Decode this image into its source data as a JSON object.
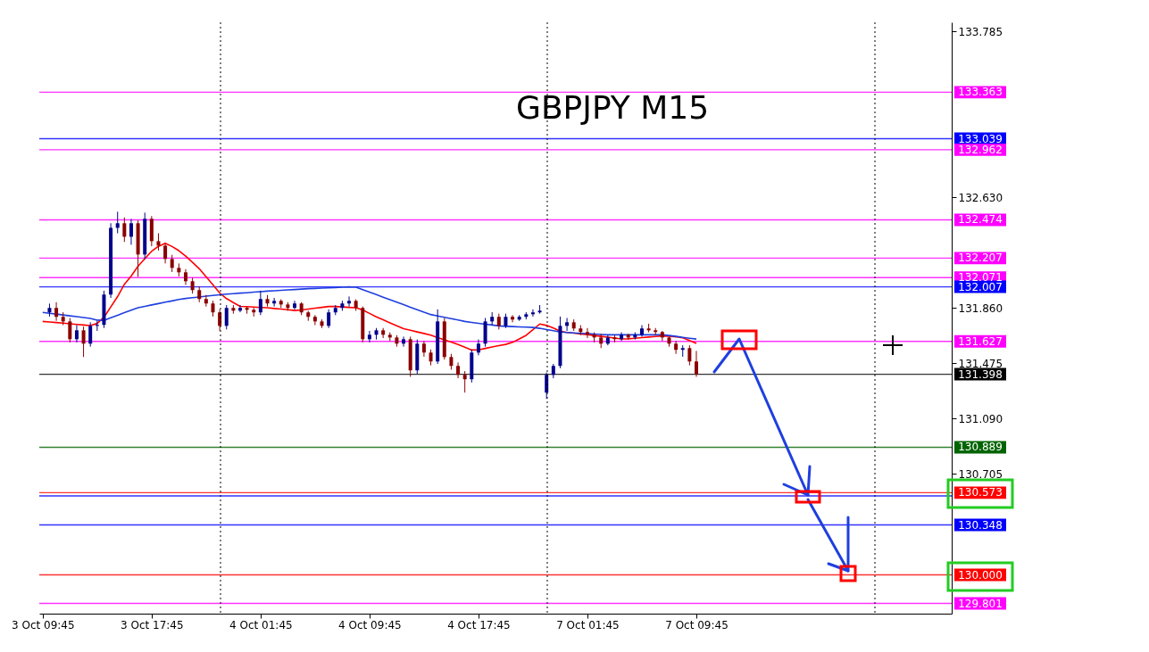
{
  "chart_data": {
    "type": "candlestick",
    "title": "GBPJPY M15",
    "categories": [
      "3 Oct 09:45",
      null,
      null,
      null,
      null,
      null,
      null,
      null,
      null,
      null,
      null,
      null,
      null,
      null,
      null,
      null,
      "3 Oct 17:45",
      null,
      null,
      null,
      null,
      null,
      null,
      null,
      null,
      null,
      null,
      null,
      null,
      null,
      null,
      null,
      "4 Oct 01:45",
      null,
      null,
      null,
      null,
      null,
      null,
      null,
      null,
      null,
      null,
      null,
      null,
      null,
      null,
      null,
      "4 Oct 09:45",
      null,
      null,
      null,
      null,
      null,
      null,
      null,
      null,
      null,
      null,
      null,
      null,
      null,
      null,
      null,
      "4 Oct 17:45",
      null,
      null,
      null,
      null,
      null,
      null,
      null,
      null,
      null,
      null,
      null,
      null,
      null,
      null,
      null,
      "7 Oct 01:45",
      null,
      null,
      null,
      null,
      null,
      null,
      null,
      null,
      null,
      null,
      null,
      null,
      null,
      null,
      null,
      "7 Oct 09:45",
      null,
      null,
      null,
      null,
      null,
      null,
      null,
      null,
      null,
      null,
      null,
      null,
      null,
      null,
      null,
      null,
      null,
      null,
      null,
      null,
      null,
      null,
      null,
      null,
      null,
      null,
      null,
      null,
      null,
      null,
      null,
      null,
      null,
      null,
      null,
      null,
      null
    ],
    "ohlc": [
      null,
      [
        131.829,
        131.89,
        131.8,
        131.86
      ],
      [
        131.86,
        131.9,
        131.77,
        131.798
      ],
      [
        131.798,
        131.83,
        131.74,
        131.766
      ],
      [
        131.766,
        131.79,
        131.62,
        131.642
      ],
      [
        131.642,
        131.74,
        131.62,
        131.704
      ],
      [
        131.704,
        131.73,
        131.518,
        131.611
      ],
      [
        131.611,
        131.76,
        131.59,
        131.735
      ],
      [
        131.735,
        131.77,
        131.7,
        131.742
      ],
      [
        131.742,
        131.98,
        131.72,
        131.953
      ],
      [
        131.953,
        132.45,
        131.93,
        132.418
      ],
      [
        132.418,
        132.53,
        132.38,
        132.45
      ],
      [
        132.45,
        132.49,
        132.32,
        132.356
      ],
      [
        132.356,
        132.48,
        132.3,
        132.45
      ],
      [
        132.45,
        132.47,
        132.077,
        132.232
      ],
      [
        132.232,
        132.524,
        132.2,
        132.481
      ],
      [
        132.481,
        132.5,
        132.29,
        132.325
      ],
      [
        132.325,
        132.38,
        132.26,
        132.294
      ],
      [
        132.294,
        132.31,
        132.17,
        132.201
      ],
      [
        132.201,
        132.23,
        132.11,
        132.139
      ],
      [
        132.139,
        132.17,
        132.08,
        132.108
      ],
      [
        132.108,
        132.13,
        132.02,
        132.046
      ],
      [
        132.046,
        132.07,
        131.96,
        131.984
      ],
      [
        131.984,
        132.01,
        131.9,
        131.922
      ],
      [
        131.922,
        131.95,
        131.87,
        131.891
      ],
      [
        131.891,
        131.91,
        131.8,
        131.829
      ],
      [
        131.829,
        131.85,
        131.7,
        131.735
      ],
      [
        131.735,
        131.88,
        131.71,
        131.86
      ],
      [
        131.86,
        131.88,
        131.82,
        131.841
      ],
      [
        131.841,
        131.88,
        131.83,
        131.86
      ],
      [
        131.86,
        131.87,
        131.82,
        131.847
      ],
      [
        131.847,
        131.86,
        131.8,
        131.829
      ],
      [
        131.829,
        131.98,
        131.81,
        131.922
      ],
      [
        131.922,
        131.95,
        131.87,
        131.891
      ],
      [
        131.891,
        131.93,
        131.87,
        131.909
      ],
      [
        131.909,
        131.92,
        131.86,
        131.884
      ],
      [
        131.884,
        131.9,
        131.84,
        131.86
      ],
      [
        131.86,
        131.91,
        131.85,
        131.891
      ],
      [
        131.891,
        131.9,
        131.81,
        131.829
      ],
      [
        131.829,
        131.84,
        131.77,
        131.798
      ],
      [
        131.798,
        131.81,
        131.74,
        131.766
      ],
      [
        131.766,
        131.78,
        131.72,
        131.735
      ],
      [
        131.735,
        131.85,
        131.72,
        131.829
      ],
      [
        131.829,
        131.88,
        131.81,
        131.86
      ],
      [
        131.86,
        131.91,
        131.84,
        131.891
      ],
      [
        131.891,
        131.94,
        131.87,
        131.909
      ],
      [
        131.909,
        131.92,
        131.84,
        131.86
      ],
      [
        131.86,
        131.87,
        131.62,
        131.642
      ],
      [
        131.642,
        131.7,
        131.62,
        131.673
      ],
      [
        131.673,
        131.72,
        131.64,
        131.704
      ],
      [
        131.704,
        131.72,
        131.65,
        131.673
      ],
      [
        131.673,
        131.69,
        131.63,
        131.654
      ],
      [
        131.654,
        131.67,
        131.59,
        131.611
      ],
      [
        131.611,
        131.66,
        131.59,
        131.642
      ],
      [
        131.642,
        131.66,
        131.38,
        131.425
      ],
      [
        131.425,
        131.64,
        131.4,
        131.611
      ],
      [
        131.611,
        131.63,
        131.52,
        131.549
      ],
      [
        131.549,
        131.57,
        131.46,
        131.487
      ],
      [
        131.487,
        131.85,
        131.47,
        131.766
      ],
      [
        131.766,
        131.79,
        131.5,
        131.518
      ],
      [
        131.518,
        131.54,
        131.43,
        131.456
      ],
      [
        131.456,
        131.48,
        131.37,
        131.394
      ],
      [
        131.394,
        131.42,
        131.27,
        131.363
      ],
      [
        131.363,
        131.57,
        131.34,
        131.549
      ],
      [
        131.549,
        131.64,
        131.53,
        131.611
      ],
      [
        131.611,
        131.79,
        131.59,
        131.766
      ],
      [
        131.766,
        131.83,
        131.74,
        131.798
      ],
      [
        131.798,
        131.82,
        131.71,
        131.735
      ],
      [
        131.735,
        131.82,
        131.72,
        131.798
      ],
      [
        131.798,
        131.81,
        131.76,
        131.779
      ],
      [
        131.779,
        131.81,
        131.77,
        131.798
      ],
      [
        131.798,
        131.83,
        131.78,
        131.816
      ],
      [
        131.816,
        131.85,
        131.8,
        131.829
      ],
      [
        131.829,
        131.88,
        131.82,
        131.841
      ],
      [
        131.27,
        131.41,
        131.226,
        131.394
      ],
      [
        131.394,
        131.47,
        131.37,
        131.456
      ],
      [
        131.456,
        131.8,
        131.44,
        131.735
      ],
      [
        131.735,
        131.79,
        131.7,
        131.76
      ],
      [
        131.76,
        131.78,
        131.7,
        131.717
      ],
      [
        131.717,
        131.74,
        131.67,
        131.692
      ],
      [
        131.692,
        131.72,
        131.65,
        131.673
      ],
      [
        131.673,
        131.69,
        131.62,
        131.654
      ],
      [
        131.654,
        131.68,
        131.58,
        131.611
      ],
      [
        131.611,
        131.67,
        131.6,
        131.654
      ],
      [
        131.654,
        131.67,
        131.62,
        131.642
      ],
      [
        131.642,
        131.69,
        131.63,
        131.673
      ],
      [
        131.673,
        131.68,
        131.64,
        131.654
      ],
      [
        131.654,
        131.69,
        131.64,
        131.673
      ],
      [
        131.673,
        131.74,
        131.66,
        131.717
      ],
      [
        131.717,
        131.75,
        131.69,
        131.704
      ],
      [
        131.704,
        131.72,
        131.67,
        131.692
      ],
      [
        131.692,
        131.7,
        131.63,
        131.654
      ],
      [
        131.654,
        131.66,
        131.59,
        131.611
      ],
      [
        131.611,
        131.63,
        131.54,
        131.568
      ],
      [
        131.568,
        131.6,
        131.52,
        131.58
      ],
      [
        131.58,
        131.6,
        131.46,
        131.487
      ],
      [
        131.487,
        131.56,
        131.38,
        131.398
      ],
      null,
      null,
      null,
      null,
      null,
      null,
      null,
      null,
      null,
      null,
      null,
      null,
      null,
      null,
      null,
      null,
      null,
      null,
      null,
      null,
      null,
      null,
      null,
      null,
      null,
      null,
      null,
      null,
      null,
      null,
      null,
      null,
      null,
      null,
      null,
      null,
      null
    ],
    "colors": [
      null,
      "#00008b",
      "#8b0000",
      "#8b0000",
      "#8b0000",
      "#00008b",
      "#8b0000",
      "#00008b",
      "#00008b",
      "#00008b",
      "#00008b",
      "#00008b",
      "#8b0000",
      "#00008b",
      "#8b0000",
      "#00008b",
      "#8b0000",
      "#8b0000",
      "#8b0000",
      "#8b0000",
      "#8b0000",
      "#8b0000",
      "#8b0000",
      "#8b0000",
      "#8b0000",
      "#8b0000",
      "#8b0000",
      "#00008b",
      "#8b0000",
      "#00008b",
      "#8b0000",
      "#8b0000",
      "#00008b",
      "#8b0000",
      "#00008b",
      "#8b0000",
      "#8b0000",
      "#00008b",
      "#8b0000",
      "#8b0000",
      "#8b0000",
      "#8b0000",
      "#00008b",
      "#00008b",
      "#00008b",
      "#00008b",
      "#8b0000",
      "#8b0000",
      "#00008b",
      "#00008b",
      "#8b0000",
      "#8b0000",
      "#8b0000",
      "#00008b",
      "#8b0000",
      "#00008b",
      "#8b0000",
      "#8b0000",
      "#00008b",
      "#8b0000",
      "#8b0000",
      "#8b0000",
      "#8b0000",
      "#00008b",
      "#00008b",
      "#00008b",
      "#00008b",
      "#8b0000",
      "#00008b",
      "#8b0000",
      "#00008b",
      "#00008b",
      "#00008b",
      "#00008b",
      "#00008b",
      "#00008b",
      "#00008b",
      "#00008b",
      "#8b0000",
      "#8b0000",
      "#8b0000",
      "#8b0000",
      "#8b0000",
      "#00008b",
      "#8b0000",
      "#00008b",
      "#8b0000",
      "#00008b",
      "#00008b",
      "#8b0000",
      "#8b0000",
      "#8b0000",
      "#8b0000",
      "#8b0000",
      "#00008b",
      "#8b0000",
      "#8b0000",
      null,
      null,
      null,
      null,
      null,
      null,
      null,
      null,
      null,
      null,
      null,
      null,
      null,
      null,
      null,
      null,
      null,
      null,
      null,
      null,
      null,
      null,
      null,
      null,
      null,
      null,
      null,
      null,
      null,
      null,
      null,
      null,
      null,
      null,
      null,
      null,
      null
    ],
    "series": [
      {
        "type": "line",
        "color": "#ff0000",
        "values": [
          131.766,
          131.762,
          131.758,
          131.754,
          131.75,
          131.745,
          131.741,
          131.737,
          131.752,
          131.795,
          131.867,
          131.939,
          132.025,
          132.082,
          132.15,
          132.203,
          132.255,
          132.289,
          132.311,
          132.288,
          132.259,
          132.221,
          132.178,
          132.133,
          132.077,
          132.021,
          131.964,
          131.925,
          131.897,
          131.871,
          131.869,
          131.866,
          131.863,
          131.861,
          131.856,
          131.852,
          131.847,
          131.842,
          131.846,
          131.852,
          131.858,
          131.864,
          131.87,
          131.87,
          131.867,
          131.864,
          131.861,
          131.846,
          131.822,
          131.798,
          131.777,
          131.756,
          131.736,
          131.716,
          131.705,
          131.693,
          131.682,
          131.67,
          131.654,
          131.638,
          131.622,
          131.605,
          131.586,
          131.567,
          131.568,
          131.578,
          131.588,
          131.597,
          131.606,
          131.62,
          131.644,
          131.669,
          131.708,
          131.748,
          131.738,
          131.72,
          131.698,
          131.689,
          131.684,
          131.679,
          131.674,
          131.668,
          131.662,
          131.656,
          131.65,
          131.644,
          131.645,
          131.649,
          131.653,
          131.657,
          131.661,
          131.665,
          131.663,
          131.659,
          131.652,
          131.633,
          131.613,
          null,
          null,
          null,
          null,
          null,
          null,
          null,
          null,
          null,
          null,
          null,
          null,
          null,
          null,
          null,
          null,
          null,
          null,
          null,
          null,
          null,
          null,
          null,
          null,
          null,
          null,
          null,
          null,
          null,
          null,
          null,
          null,
          null,
          null,
          null,
          null,
          null
        ]
      },
      {
        "type": "line",
        "color": "#1f3fdf",
        "values": [
          131.829,
          131.823,
          131.817,
          131.811,
          131.805,
          131.799,
          131.793,
          131.787,
          131.775,
          131.773,
          131.791,
          131.809,
          131.827,
          131.845,
          131.862,
          131.871,
          131.881,
          131.89,
          131.9,
          131.909,
          131.919,
          131.926,
          131.931,
          131.936,
          131.942,
          131.947,
          131.952,
          131.956,
          131.959,
          131.963,
          131.966,
          131.97,
          131.973,
          131.977,
          131.98,
          131.983,
          131.986,
          131.988,
          131.991,
          131.994,
          131.996,
          131.998,
          132.0,
          132.002,
          132.004,
          132.007,
          132.004,
          131.987,
          131.97,
          131.953,
          131.935,
          131.918,
          131.9,
          131.883,
          131.865,
          131.848,
          131.83,
          131.814,
          131.804,
          131.795,
          131.785,
          131.776,
          131.766,
          131.759,
          131.753,
          131.747,
          131.741,
          131.735,
          131.732,
          131.73,
          131.728,
          131.726,
          131.724,
          131.718,
          131.709,
          131.701,
          131.692,
          131.689,
          131.686,
          131.683,
          131.681,
          131.678,
          131.675,
          131.673,
          131.673,
          131.673,
          131.673,
          131.673,
          131.673,
          131.673,
          131.673,
          131.673,
          131.668,
          131.662,
          131.655,
          131.649,
          131.643,
          null,
          null,
          null,
          null,
          null,
          null,
          null,
          null,
          null,
          null,
          null,
          null,
          null,
          null,
          null,
          null,
          null,
          null,
          null,
          null,
          null,
          null,
          null,
          null,
          null,
          null,
          null,
          null,
          null,
          null,
          null,
          null,
          null,
          null,
          null,
          null,
          null
        ]
      }
    ],
    "ylim": [
      129.73,
      133.85
    ],
    "yticks": [
      133.785,
      {
        "value": 132.63,
        "label": "132.630"
      },
      {
        "value": 131.86,
        "label": "131.860"
      },
      131.475,
      {
        "value": 131.09,
        "label": "131.090"
      },
      130.705
    ],
    "ref_lines": [
      {
        "axis": "y",
        "value": 133.363,
        "label": "133.363",
        "color": "#ff00ff"
      },
      {
        "axis": "y",
        "value": 133.039,
        "label": "133.039",
        "color": "#0000ff"
      },
      {
        "axis": "y",
        "value": 132.962,
        "label": "132.962",
        "color": "#ff00ff"
      },
      {
        "axis": "y",
        "value": 132.474,
        "label": "132.474",
        "color": "#ff00ff"
      },
      {
        "axis": "y",
        "value": 132.207,
        "label": "132.207",
        "color": "#ff00ff"
      },
      {
        "axis": "y",
        "value": 132.071,
        "label": "132.071",
        "color": "#ff00ff"
      },
      {
        "axis": "y",
        "value": 132.007,
        "label": "132.007",
        "color": "#0000ff"
      },
      {
        "axis": "y",
        "value": 131.627,
        "label": "131.627",
        "color": "#ff00ff"
      },
      {
        "axis": "y",
        "value": 131.398,
        "label": "131.398",
        "color": "#000000"
      },
      {
        "axis": "y",
        "value": 130.889,
        "label": "130.889",
        "color": "#006400"
      },
      {
        "axis": "y",
        "value": 130.573,
        "label": "130.573",
        "color": "#ff0000"
      },
      {
        "axis": "y",
        "value": 130.55,
        "label": null,
        "color": "#0000ff"
      },
      {
        "axis": "y",
        "value": 130.348,
        "label": "130.348",
        "color": "#0000ff"
      },
      {
        "axis": "y",
        "value": 130.0,
        "label": "130.000",
        "color": "#ff0000"
      },
      {
        "axis": "y",
        "value": 129.801,
        "label": "129.801",
        "color": "#ff00ff"
      }
    ]
  }
}
